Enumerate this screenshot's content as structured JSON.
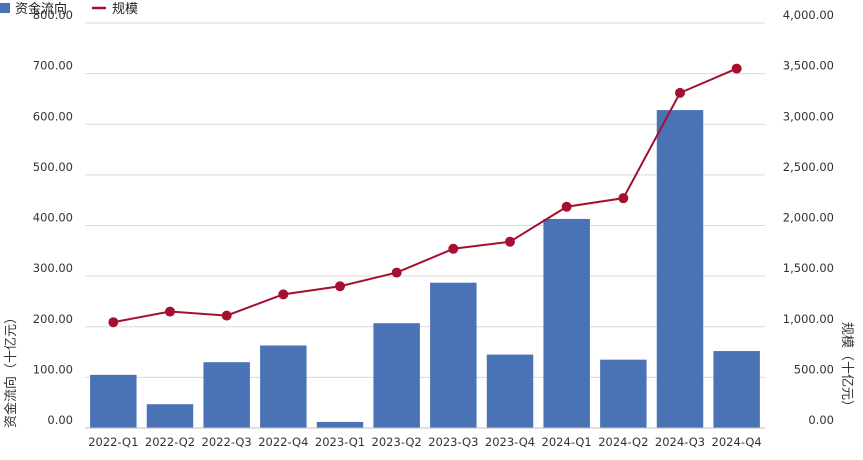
{
  "chart_data": {
    "type": "bar+line",
    "categories": [
      "2022-Q1",
      "2022-Q2",
      "2022-Q3",
      "2022-Q4",
      "2023-Q1",
      "2023-Q2",
      "2023-Q3",
      "2023-Q4",
      "2024-Q1",
      "2024-Q2",
      "2024-Q3",
      "2024-Q4"
    ],
    "series": [
      {
        "name": "资金流向",
        "type": "bar",
        "axis": "left",
        "color": "#4a73b5",
        "values": [
          105,
          47,
          130,
          163,
          12,
          207,
          287,
          145,
          413,
          135,
          628,
          152
        ]
      },
      {
        "name": "规模",
        "type": "line",
        "axis": "right",
        "color": "#a5102f",
        "values": [
          1045,
          1150,
          1110,
          1320,
          1400,
          1535,
          1770,
          1840,
          2185,
          2270,
          3310,
          3550
        ]
      }
    ],
    "yleft": {
      "label": "资金流向（十亿元）",
      "min": 0,
      "max": 800,
      "ticks": [
        "800.00",
        "700.00",
        "600.00",
        "500.00",
        "400.00",
        "300.00",
        "200.00",
        "100.00",
        "0.00"
      ]
    },
    "yright": {
      "label": "规模（十亿元）",
      "min": 0,
      "max": 4000,
      "ticks": [
        "4,000.00",
        "3,500.00",
        "3,000.00",
        "2,500.00",
        "2,000.00",
        "1,500.00",
        "1,000.00",
        "500.00",
        "0.00"
      ]
    },
    "grid": true,
    "legend": "top-left"
  }
}
